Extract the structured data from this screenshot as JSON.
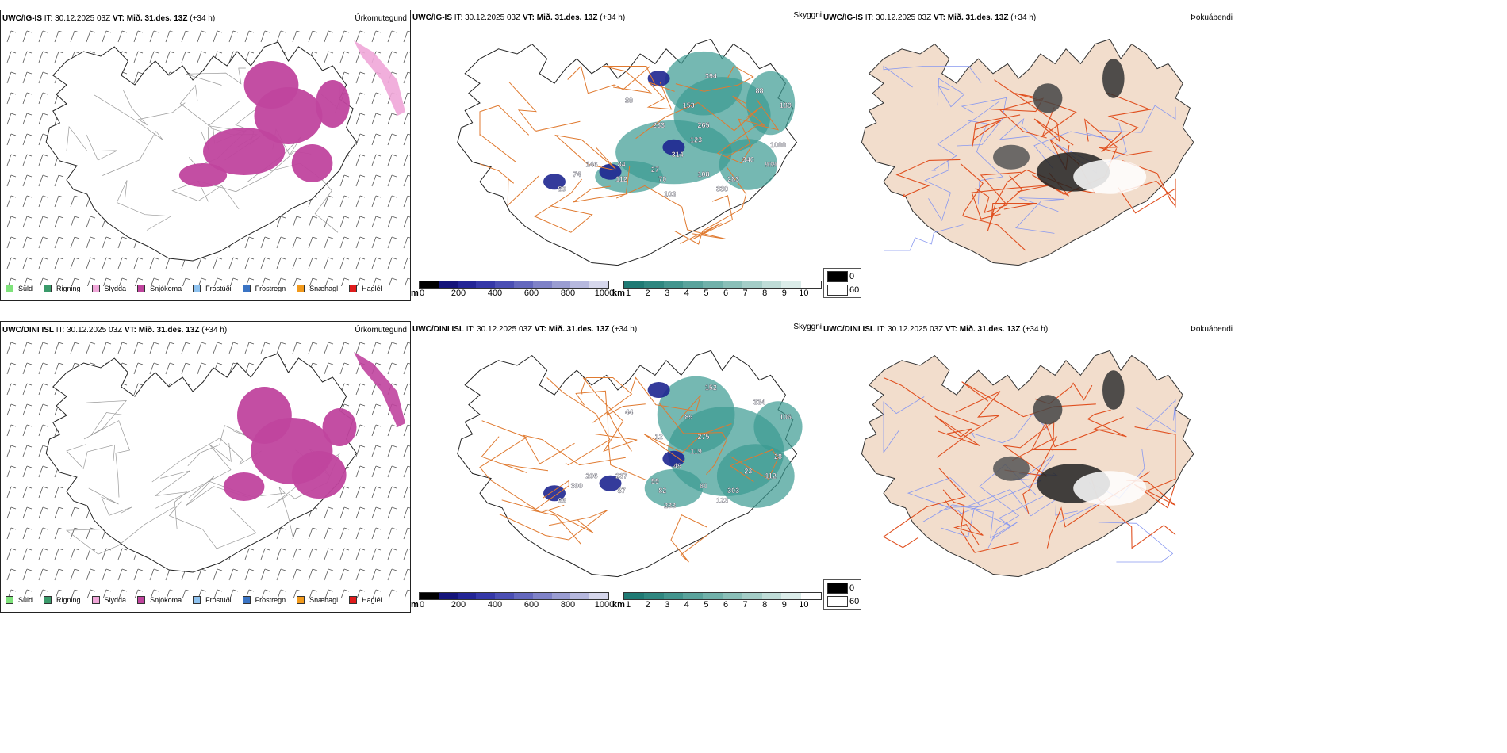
{
  "rows": [
    {
      "model": "UWC/IG-IS",
      "it_label": "IT:",
      "it_value": "30.12.2025 03Z",
      "vt_label": "VT:",
      "vt_value": "Mið. 31.des. 13Z",
      "lead": "(+34 h)",
      "precip_title": "Úrkomutegund",
      "vis_title": "Skyggni",
      "fog_title": "Þokuábendi",
      "height_labels": [
        "394",
        "88",
        "189",
        "153",
        "265",
        "123",
        "1000",
        "314",
        "340",
        "939",
        "84",
        "146",
        "74",
        "27",
        "70",
        "108",
        "283",
        "103",
        "80",
        "330",
        "233",
        "112",
        "30"
      ],
      "colors": {
        "precip": "#c0449e"
      }
    },
    {
      "model": "UWC/DINI ISL",
      "it_label": "IT:",
      "it_value": "30.12.2025 03Z",
      "vt_label": "VT:",
      "vt_value": "Mið. 31.des. 13Z",
      "lead": "(+34 h)",
      "precip_title": "Úrkomutegund",
      "vis_title": "Skyggni",
      "fog_title": "Þokuábendi",
      "height_labels": [
        "152",
        "334",
        "106",
        "89",
        "275",
        "119",
        "28",
        "49",
        "23",
        "112",
        "237",
        "206",
        "390",
        "99",
        "82",
        "80",
        "303",
        "233",
        "66",
        "123",
        "12",
        "87",
        "44"
      ],
      "colors": {
        "precip": "#c0449e"
      }
    }
  ],
  "precip_legend": [
    {
      "label": "Súld",
      "color": "#7ee27a"
    },
    {
      "label": "Rigning",
      "color": "#3a9a6a"
    },
    {
      "label": "Slydda",
      "color": "#f0a6d8"
    },
    {
      "label": "Snjókoma",
      "color": "#c0449e"
    },
    {
      "label": "Frostúði",
      "color": "#8ec2ef"
    },
    {
      "label": "Frostregn",
      "color": "#3a74c4"
    },
    {
      "label": "Snæhagl",
      "color": "#f29a1c"
    },
    {
      "label": "Haglél",
      "color": "#e01c1c"
    }
  ],
  "cloudbase_bar": {
    "unit": "m",
    "ticks": [
      "0",
      "200",
      "400",
      "600",
      "800",
      "1000"
    ],
    "colors": [
      "#000000",
      "#14147a",
      "#232596",
      "#3538a8",
      "#4b4fb4",
      "#6468be",
      "#7f82c8",
      "#9a9dd2",
      "#b6b8de",
      "#d6d7ec"
    ]
  },
  "visibility_bar": {
    "unit": "km",
    "ticks": [
      "1",
      "2",
      "3",
      "4",
      "5",
      "6",
      "7",
      "8",
      "9",
      "10"
    ],
    "colors": [
      "#1f7a74",
      "#2f8780",
      "#43958e",
      "#5aa39c",
      "#71b1aa",
      "#8abfb8",
      "#a4cdc7",
      "#bfdcd7",
      "#dbece9",
      "#ffffff"
    ]
  },
  "fog_key": {
    "values": [
      "0",
      "60"
    ],
    "colors": [
      "#000000",
      "#ffffff"
    ]
  },
  "map_colors": {
    "land_fog": "#f2ddcc",
    "roads": "#e07a30",
    "rivers": "#8898f0",
    "coast": "#222222",
    "teal": "#3a9a92",
    "navy": "#1e2690"
  }
}
